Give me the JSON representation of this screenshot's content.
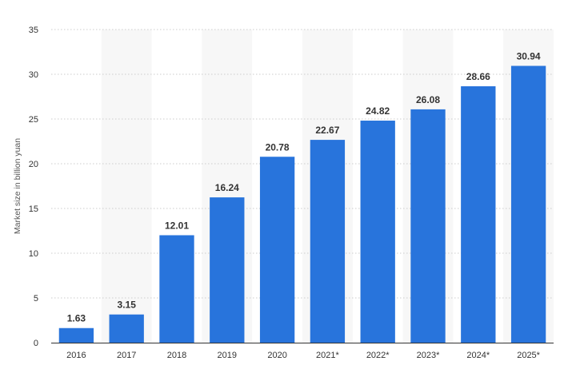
{
  "chart_data": {
    "type": "bar",
    "categories": [
      "2016",
      "2017",
      "2018",
      "2019",
      "2020",
      "2021*",
      "2022*",
      "2023*",
      "2024*",
      "2025*"
    ],
    "values": [
      1.63,
      3.15,
      12.01,
      16.24,
      20.78,
      22.67,
      24.82,
      26.08,
      28.66,
      30.94
    ],
    "value_labels": [
      "1.63",
      "3.15",
      "12.01",
      "16.24",
      "20.78",
      "22.67",
      "24.82",
      "26.08",
      "28.66",
      "30.94"
    ],
    "title": "",
    "xlabel": "",
    "ylabel": "Market size in billion yuan",
    "ylim": [
      0,
      35
    ],
    "yticks": [
      0,
      5,
      10,
      15,
      20,
      25,
      30,
      35
    ],
    "ytick_labels": [
      "0",
      "5",
      "10",
      "15",
      "20",
      "25",
      "30",
      "35"
    ],
    "grid": true,
    "legend": "none",
    "bar_color": "#2874dc",
    "alt_band_color": "#f7f7f7",
    "grid_color": "#cccccc"
  }
}
